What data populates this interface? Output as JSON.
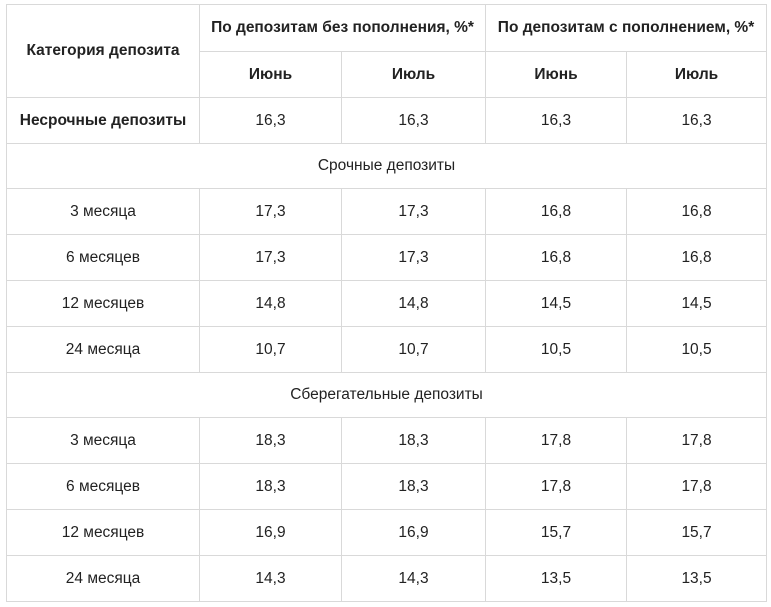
{
  "table": {
    "header": {
      "category": "Категория депозита",
      "group_no_topup": "По депозитам без пополнения, %*",
      "group_topup": "По депозитам с пополнением, %*",
      "months": [
        "Июнь",
        "Июль",
        "Июнь",
        "Июль"
      ]
    },
    "nonterm": {
      "label": "Несрочные депозиты",
      "values": [
        "16,3",
        "16,3",
        "16,3",
        "16,3"
      ]
    },
    "term": {
      "title": "Срочные депозиты",
      "rows": [
        {
          "label": "3 месяца",
          "values": [
            "17,3",
            "17,3",
            "16,8",
            "16,8"
          ]
        },
        {
          "label": "6 месяцев",
          "values": [
            "17,3",
            "17,3",
            "16,8",
            "16,8"
          ]
        },
        {
          "label": "12 месяцев",
          "values": [
            "14,8",
            "14,8",
            "14,5",
            "14,5"
          ]
        },
        {
          "label": "24 месяца",
          "values": [
            "10,7",
            "10,7",
            "10,5",
            "10,5"
          ]
        }
      ]
    },
    "savings": {
      "title": "Сберегательные депозиты",
      "rows": [
        {
          "label": "3 месяца",
          "values": [
            "18,3",
            "18,3",
            "17,8",
            "17,8"
          ]
        },
        {
          "label": "6 месяцев",
          "values": [
            "18,3",
            "18,3",
            "17,8",
            "17,8"
          ]
        },
        {
          "label": "12 месяцев",
          "values": [
            "16,9",
            "16,9",
            "15,7",
            "15,7"
          ]
        },
        {
          "label": "24 месяца",
          "values": [
            "14,3",
            "14,3",
            "13,5",
            "13,5"
          ]
        }
      ]
    }
  }
}
